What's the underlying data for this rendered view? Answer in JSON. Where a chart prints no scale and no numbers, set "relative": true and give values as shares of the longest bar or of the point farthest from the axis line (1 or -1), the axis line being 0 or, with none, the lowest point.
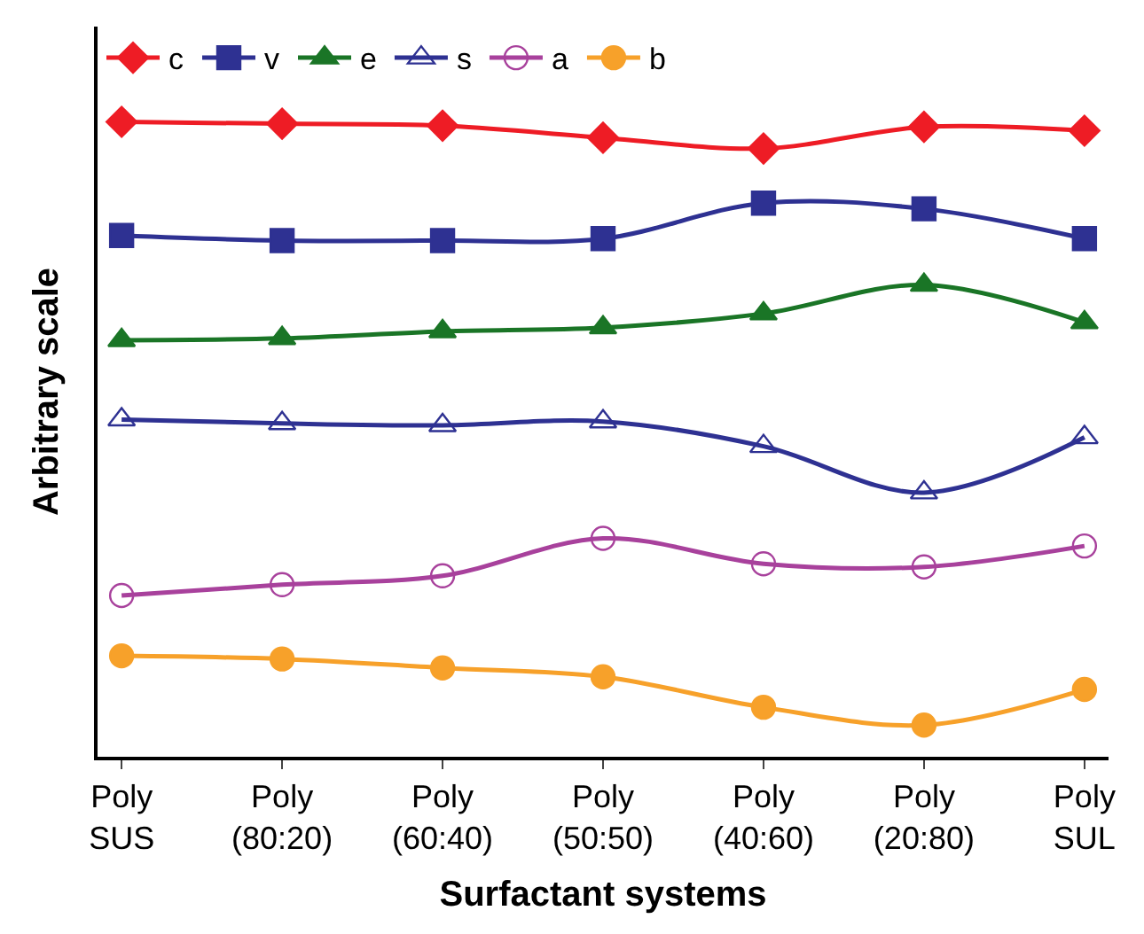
{
  "chart_data": {
    "type": "line",
    "relative": true,
    "xlabel": "Surfactant systems",
    "ylabel": "Arbitrary scale",
    "categories": [
      "Poly\nSUS",
      "Poly\n(80:20)",
      "Poly\n(60:40)",
      "Poly\n(50:50)",
      "Poly\n(40:60)",
      "Poly\n(20:80)",
      "Poly\nSUL"
    ],
    "legend": "top left",
    "series": [
      {
        "name": "c",
        "color": "#ee1c25",
        "marker": "diamond",
        "values": [
          1.0,
          0.997,
          0.994,
          0.975,
          0.958,
          0.992,
          0.986
        ]
      },
      {
        "name": "v",
        "color": "#2e3192",
        "marker": "square",
        "values": [
          0.821,
          0.813,
          0.813,
          0.816,
          0.872,
          0.863,
          0.816
        ]
      },
      {
        "name": "e",
        "color": "#1a7526",
        "marker": "triangle",
        "values": [
          0.656,
          0.659,
          0.67,
          0.676,
          0.698,
          0.743,
          0.684
        ]
      },
      {
        "name": "s",
        "color": "#2e3192",
        "marker": "triangle-open",
        "values": [
          0.531,
          0.525,
          0.522,
          0.528,
          0.489,
          0.416,
          0.503
        ]
      },
      {
        "name": "a",
        "color": "#a8419c",
        "marker": "circle-open",
        "values": [
          0.254,
          0.271,
          0.285,
          0.344,
          0.304,
          0.299,
          0.332
        ]
      },
      {
        "name": "b",
        "color": "#f7a12a",
        "marker": "circle",
        "values": [
          0.159,
          0.154,
          0.14,
          0.126,
          0.078,
          0.05,
          0.106
        ]
      }
    ]
  }
}
